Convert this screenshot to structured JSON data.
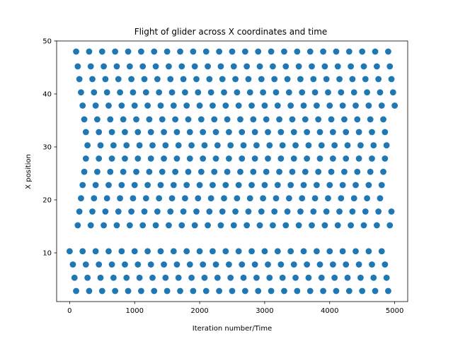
{
  "chart_data": {
    "type": "scatter",
    "title": "Flight of glider across X coordinates and time",
    "xlabel": "Iteration number/Time",
    "ylabel": "X position",
    "xlim": [
      -200,
      5200
    ],
    "ylim": [
      0.8,
      50.0
    ],
    "xticks": [
      0,
      1000,
      2000,
      3000,
      4000,
      5000
    ],
    "yticks": [
      10,
      20,
      30,
      40,
      50
    ],
    "grid": false,
    "legend": "none",
    "marker_color": "#1f77b4",
    "series": [
      {
        "x": [
          100,
          300,
          500,
          700,
          900,
          1100,
          1300,
          1500,
          1700,
          1900,
          2100,
          2300,
          2500,
          2700,
          2900,
          3100,
          3300,
          3500,
          3700,
          3900,
          4100,
          4300,
          4500,
          4700,
          4900,
          125,
          325,
          525,
          725,
          925,
          1125,
          1325,
          1525,
          1725,
          1925,
          2125,
          2325,
          2525,
          2725,
          2925,
          3125,
          3325,
          3525,
          3725,
          3925,
          4125,
          4325,
          4525,
          4725,
          4925,
          150,
          350,
          550,
          750,
          950,
          1150,
          1350,
          1550,
          1750,
          1950,
          2150,
          2350,
          2550,
          2750,
          2950,
          3150,
          3350,
          3550,
          3750,
          3950,
          4150,
          4350,
          4550,
          4750,
          4950,
          175,
          375,
          575,
          775,
          975,
          1175,
          1375,
          1575,
          1775,
          1975,
          2175,
          2375,
          2575,
          2775,
          2975,
          3175,
          3375,
          3575,
          3775,
          3975,
          4175,
          4375,
          4575,
          4775,
          4975,
          200,
          400,
          600,
          800,
          1000,
          1200,
          1400,
          1600,
          1800,
          2000,
          2200,
          2400,
          2600,
          2800,
          3000,
          3200,
          3400,
          3600,
          3800,
          4000,
          4200,
          4400,
          4600,
          4800,
          5000,
          225,
          425,
          625,
          825,
          1025,
          1225,
          1425,
          1625,
          1825,
          2025,
          2225,
          2425,
          2625,
          2825,
          3025,
          3225,
          3425,
          3625,
          3825,
          4025,
          4225,
          4425,
          4625,
          4825,
          250,
          450,
          650,
          850,
          1050,
          1250,
          1450,
          1650,
          1850,
          2050,
          2250,
          2450,
          2650,
          2850,
          3050,
          3250,
          3450,
          3650,
          3850,
          4050,
          4250,
          4450,
          4650,
          4850,
          275,
          475,
          675,
          875,
          1075,
          1275,
          1475,
          1675,
          1875,
          2075,
          2275,
          2475,
          2675,
          2875,
          3075,
          3275,
          3475,
          3675,
          3875,
          4075,
          4275,
          4475,
          4675,
          4875,
          0,
          200,
          400,
          600,
          800,
          1000,
          1200,
          1400,
          1600,
          1800,
          2000,
          2200,
          2400,
          2600,
          2800,
          3000,
          3200,
          3400,
          3600,
          3800,
          4000,
          4200,
          4400,
          4600,
          4800,
          50,
          250,
          450,
          650,
          850,
          1050,
          1250,
          1450,
          1650,
          1850,
          2050,
          2250,
          2450,
          2650,
          2850,
          3050,
          3250,
          3450,
          3650,
          3850,
          4050,
          4250,
          4450,
          4650,
          4850,
          75,
          275,
          475,
          675,
          875,
          1075,
          1275,
          1475,
          1675,
          1875,
          2075,
          2275,
          2475,
          2675,
          2875,
          3075,
          3275,
          3475,
          3675,
          3875,
          4075,
          4275,
          4475,
          4675,
          4875,
          100,
          300,
          500,
          700,
          900,
          1100,
          1300,
          1500,
          1700,
          1900,
          2100,
          2300,
          2500,
          2700,
          2900,
          3100,
          3300,
          3500,
          3700,
          3900,
          4100,
          4300,
          4500,
          4700,
          4900
        ],
        "y": [
          48,
          48,
          48,
          48,
          48,
          48,
          48,
          48,
          48,
          48,
          48,
          48,
          48,
          48,
          48,
          48,
          48,
          48,
          48,
          48,
          48,
          48,
          48,
          48,
          48,
          45.2,
          45.2,
          45.2,
          45.2,
          45.2,
          45.2,
          45.2,
          45.2,
          45.2,
          45.2,
          45.2,
          45.2,
          45.2,
          45.2,
          45.2,
          45.2,
          45.2,
          45.2,
          45.2,
          45.2,
          45.2,
          45.2,
          45.2,
          45.2,
          45.2,
          42.8,
          42.8,
          42.8,
          42.8,
          42.8,
          42.8,
          42.8,
          42.8,
          42.8,
          42.8,
          42.8,
          42.8,
          42.8,
          42.8,
          42.8,
          42.8,
          42.8,
          42.8,
          42.8,
          42.8,
          42.8,
          42.8,
          42.8,
          42.8,
          42.8,
          40.3,
          40.3,
          40.3,
          40.3,
          40.3,
          40.3,
          40.3,
          40.3,
          40.3,
          40.3,
          40.3,
          40.3,
          40.3,
          40.3,
          40.3,
          40.3,
          40.3,
          40.3,
          40.3,
          40.3,
          40.3,
          40.3,
          40.3,
          40.3,
          40.3,
          37.8,
          37.8,
          37.8,
          37.8,
          37.8,
          37.8,
          37.8,
          37.8,
          37.8,
          37.8,
          37.8,
          37.8,
          37.8,
          37.8,
          37.8,
          37.8,
          37.8,
          37.8,
          37.8,
          37.8,
          37.8,
          37.8,
          37.8,
          37.8,
          37.8,
          35.2,
          35.2,
          35.2,
          35.2,
          35.2,
          35.2,
          35.2,
          35.2,
          35.2,
          35.2,
          35.2,
          35.2,
          35.2,
          35.2,
          35.2,
          35.2,
          35.2,
          35.2,
          35.2,
          35.2,
          35.2,
          35.2,
          35.2,
          35.2,
          32.8,
          32.8,
          32.8,
          32.8,
          32.8,
          32.8,
          32.8,
          32.8,
          32.8,
          32.8,
          32.8,
          32.8,
          32.8,
          32.8,
          32.8,
          32.8,
          32.8,
          32.8,
          32.8,
          32.8,
          32.8,
          32.8,
          32.8,
          32.8,
          30.3,
          30.3,
          30.3,
          30.3,
          30.3,
          30.3,
          30.3,
          30.3,
          30.3,
          30.3,
          30.3,
          30.3,
          30.3,
          30.3,
          30.3,
          30.3,
          30.3,
          30.3,
          30.3,
          30.3,
          30.3,
          30.3,
          30.3,
          30.3,
          10.3,
          10.3,
          10.3,
          10.3,
          10.3,
          10.3,
          10.3,
          10.3,
          10.3,
          10.3,
          10.3,
          10.3,
          10.3,
          10.3,
          10.3,
          10.3,
          10.3,
          10.3,
          10.3,
          10.3,
          10.3,
          10.3,
          10.3,
          10.3,
          10.3,
          7.8,
          7.8,
          7.8,
          7.8,
          7.8,
          7.8,
          7.8,
          7.8,
          7.8,
          7.8,
          7.8,
          7.8,
          7.8,
          7.8,
          7.8,
          7.8,
          7.8,
          7.8,
          7.8,
          7.8,
          7.8,
          7.8,
          7.8,
          7.8,
          7.8,
          5.3,
          5.3,
          5.3,
          5.3,
          5.3,
          5.3,
          5.3,
          5.3,
          5.3,
          5.3,
          5.3,
          5.3,
          5.3,
          5.3,
          5.3,
          5.3,
          5.3,
          5.3,
          5.3,
          5.3,
          5.3,
          5.3,
          5.3,
          5.3,
          5.3,
          2.8,
          2.8,
          2.8,
          2.8,
          2.8,
          2.8,
          2.8,
          2.8,
          2.8,
          2.8,
          2.8,
          2.8,
          2.8,
          2.8,
          2.8,
          2.8,
          2.8,
          2.8,
          2.8,
          2.8,
          2.8,
          2.8,
          2.8,
          2.8,
          2.8
        ]
      },
      {
        "x": [
          250,
          450,
          650,
          850,
          1050,
          1250,
          1450,
          1650,
          1850,
          2050,
          2250,
          2450,
          2650,
          2850,
          3050,
          3250,
          3450,
          3650,
          3850,
          4050,
          4250,
          4450,
          4650,
          4850,
          225,
          425,
          625,
          825,
          1025,
          1225,
          1425,
          1625,
          1825,
          2025,
          2225,
          2425,
          2625,
          2825,
          3025,
          3225,
          3425,
          3625,
          3825,
          4025,
          4225,
          4425,
          4625,
          4825,
          200,
          400,
          600,
          800,
          1000,
          1200,
          1400,
          1600,
          1800,
          2000,
          2200,
          2400,
          2600,
          2800,
          3000,
          3200,
          3400,
          3600,
          3800,
          4000,
          4200,
          4400,
          4600,
          4800,
          175,
          375,
          575,
          775,
          975,
          1175,
          1375,
          1575,
          1775,
          1975,
          2175,
          2375,
          2575,
          2775,
          2975,
          3175,
          3375,
          3575,
          3775,
          3975,
          4175,
          4375,
          4575,
          4775,
          150,
          350,
          550,
          750,
          950,
          1150,
          1350,
          1550,
          1750,
          1950,
          2150,
          2350,
          2550,
          2750,
          2950,
          3150,
          3350,
          3550,
          3750,
          3950,
          4150,
          4350,
          4550,
          4750,
          4950,
          125,
          325,
          525,
          725,
          925,
          1125,
          1325,
          1525,
          1725,
          1925,
          2125,
          2325,
          2525,
          2725,
          2925,
          3125,
          3325,
          3525,
          3725,
          3925,
          4125,
          4325,
          4525,
          4725,
          4925
        ],
        "y": [
          27.8,
          27.8,
          27.8,
          27.8,
          27.8,
          27.8,
          27.8,
          27.8,
          27.8,
          27.8,
          27.8,
          27.8,
          27.8,
          27.8,
          27.8,
          27.8,
          27.8,
          27.8,
          27.8,
          27.8,
          27.8,
          27.8,
          27.8,
          27.8,
          25.3,
          25.3,
          25.3,
          25.3,
          25.3,
          25.3,
          25.3,
          25.3,
          25.3,
          25.3,
          25.3,
          25.3,
          25.3,
          25.3,
          25.3,
          25.3,
          25.3,
          25.3,
          25.3,
          25.3,
          25.3,
          25.3,
          25.3,
          25.3,
          22.8,
          22.8,
          22.8,
          22.8,
          22.8,
          22.8,
          22.8,
          22.8,
          22.8,
          22.8,
          22.8,
          22.8,
          22.8,
          22.8,
          22.8,
          22.8,
          22.8,
          22.8,
          22.8,
          22.8,
          22.8,
          22.8,
          22.8,
          22.8,
          20.3,
          20.3,
          20.3,
          20.3,
          20.3,
          20.3,
          20.3,
          20.3,
          20.3,
          20.3,
          20.3,
          20.3,
          20.3,
          20.3,
          20.3,
          20.3,
          20.3,
          20.3,
          20.3,
          20.3,
          20.3,
          20.3,
          20.3,
          20.3,
          17.8,
          17.8,
          17.8,
          17.8,
          17.8,
          17.8,
          17.8,
          17.8,
          17.8,
          17.8,
          17.8,
          17.8,
          17.8,
          17.8,
          17.8,
          17.8,
          17.8,
          17.8,
          17.8,
          17.8,
          17.8,
          17.8,
          17.8,
          17.8,
          17.8,
          15.2,
          15.2,
          15.2,
          15.2,
          15.2,
          15.2,
          15.2,
          15.2,
          15.2,
          15.2,
          15.2,
          15.2,
          15.2,
          15.2,
          15.2,
          15.2,
          15.2,
          15.2,
          15.2,
          15.2,
          15.2,
          15.2,
          15.2,
          15.2,
          15.2
        ]
      }
    ]
  }
}
